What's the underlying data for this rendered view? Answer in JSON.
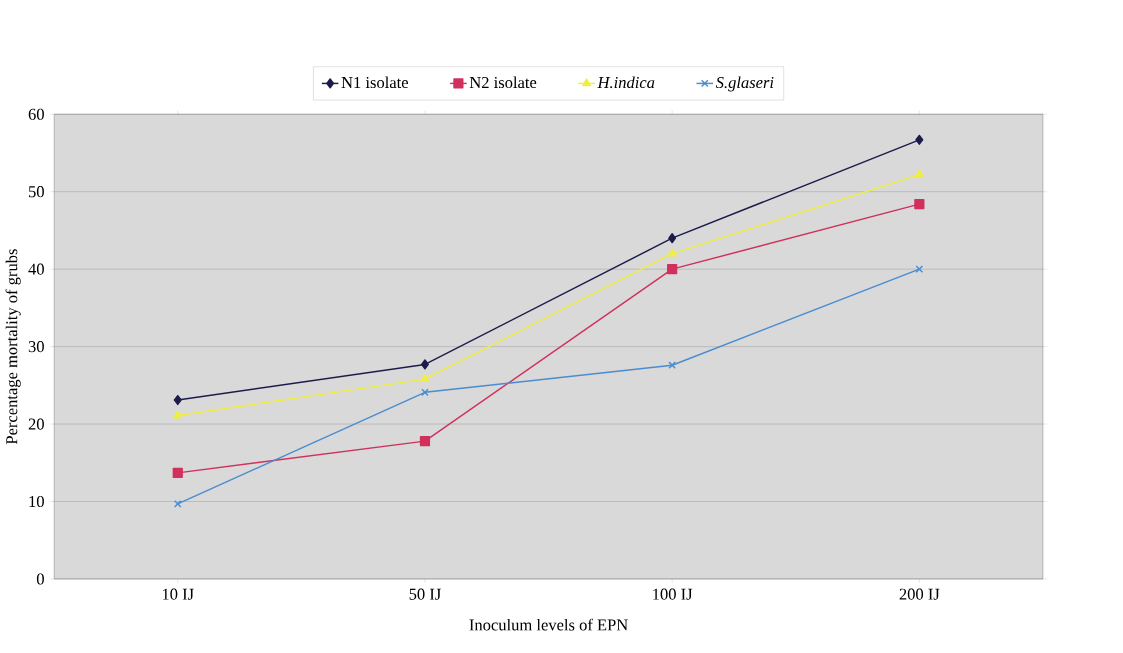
{
  "chart_data": {
    "type": "line",
    "xlabel": "Inoculum levels of EPN",
    "ylabel": "Percentage mortality of grubs",
    "categories": [
      "10 IJ",
      "50 IJ",
      "100 IJ",
      "200 IJ"
    ],
    "series": [
      {
        "name": "N1 isolate",
        "color": "#1c1c4c",
        "marker": "diamond",
        "values": [
          23.1,
          27.7,
          44.0,
          56.7
        ]
      },
      {
        "name": "N2 isolate",
        "color": "#d0305c",
        "marker": "square",
        "values": [
          13.7,
          17.8,
          40.0,
          48.4
        ]
      },
      {
        "name": "*H.indica*",
        "color": "#f0ee40",
        "marker": "triangle",
        "values": [
          21.1,
          25.8,
          42.0,
          52.2
        ]
      },
      {
        "name": "*S.glaseri*",
        "color": "#4a8cd0",
        "marker": "cross",
        "values": [
          9.7,
          24.1,
          27.6,
          40.0
        ]
      }
    ],
    "ylim": [
      0,
      60
    ],
    "yticks": [
      0,
      10,
      20,
      30,
      40,
      50,
      60
    ],
    "grid": "y",
    "legend": "top"
  }
}
